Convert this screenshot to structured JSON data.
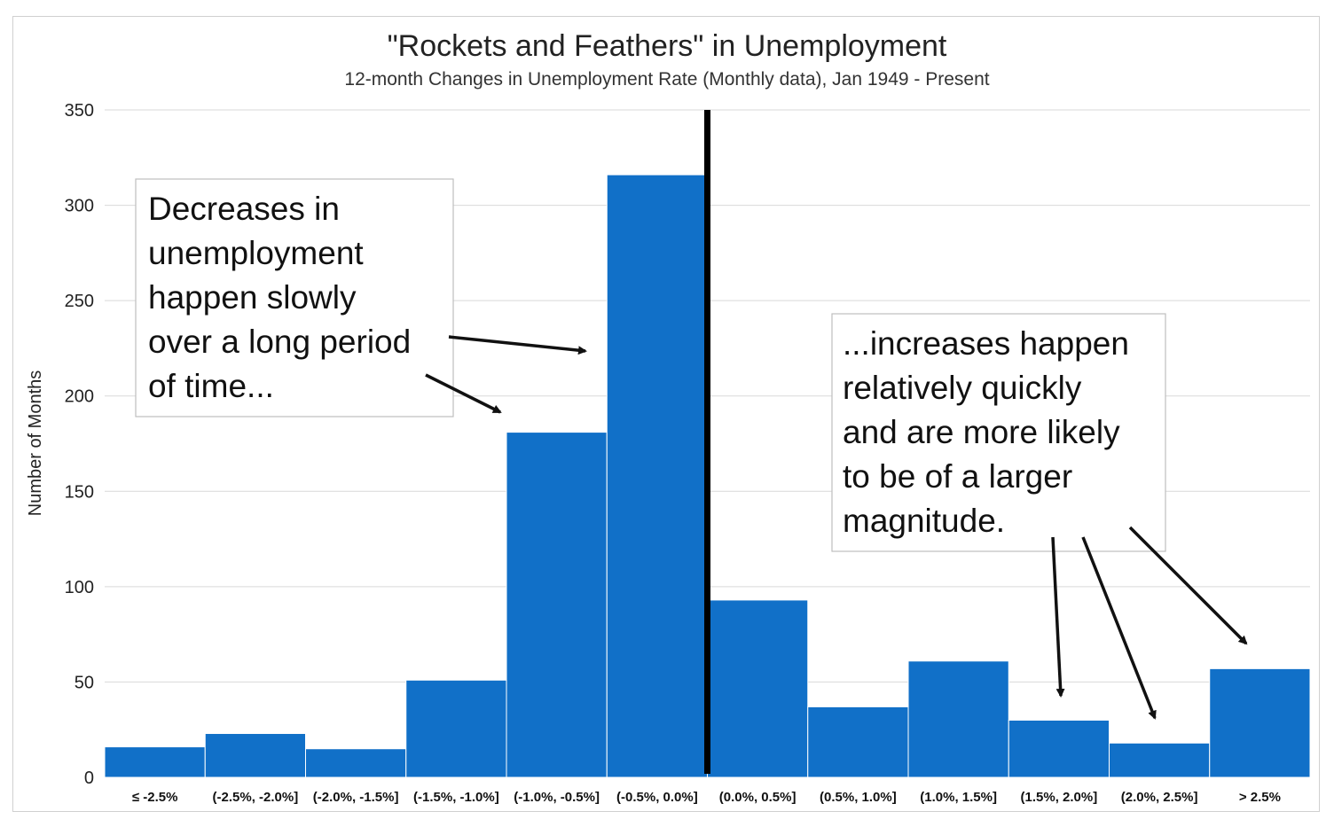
{
  "chart_data": {
    "type": "bar",
    "title": "\"Rockets and Feathers\" in Unemployment",
    "subtitle": "12-month Changes in Unemployment Rate (Monthly data), Jan 1949 - Present",
    "xlabel": "",
    "ylabel": "Number of Months",
    "ylim": [
      0,
      350
    ],
    "yticks": [
      0,
      50,
      100,
      150,
      200,
      250,
      300,
      350
    ],
    "grid": true,
    "categories": [
      "≤ -2.5%",
      "(-2.5%, -2.0%]",
      "(-2.0%, -1.5%]",
      "(-1.5%, -1.0%]",
      "(-1.0%, -0.5%]",
      "(-0.5%, 0.0%]",
      "(0.0%, 0.5%]",
      "(0.5%, 1.0%]",
      "(1.0%, 1.5%]",
      "(1.5%, 2.0%]",
      "(2.0%, 2.5%]",
      "> 2.5%"
    ],
    "values": [
      16,
      23,
      15,
      51,
      181,
      316,
      93,
      37,
      61,
      30,
      18,
      57
    ],
    "bar_color": "#1170c8",
    "divider_after_category": "(-0.5%, 0.0%]",
    "annotations": [
      {
        "lines": [
          "Decreases in",
          "unemployment",
          "happen slowly",
          "over a long period",
          "of time..."
        ],
        "points_to": [
          "(-1.0%, -0.5%]",
          "(-0.5%, 0.0%]"
        ]
      },
      {
        "lines": [
          "...increases happen",
          "relatively quickly",
          "and are more likely",
          "to be of a larger",
          "magnitude."
        ],
        "points_to": [
          "(1.5%, 2.0%]",
          "(2.0%, 2.5%]",
          "> 2.5%"
        ]
      }
    ]
  }
}
